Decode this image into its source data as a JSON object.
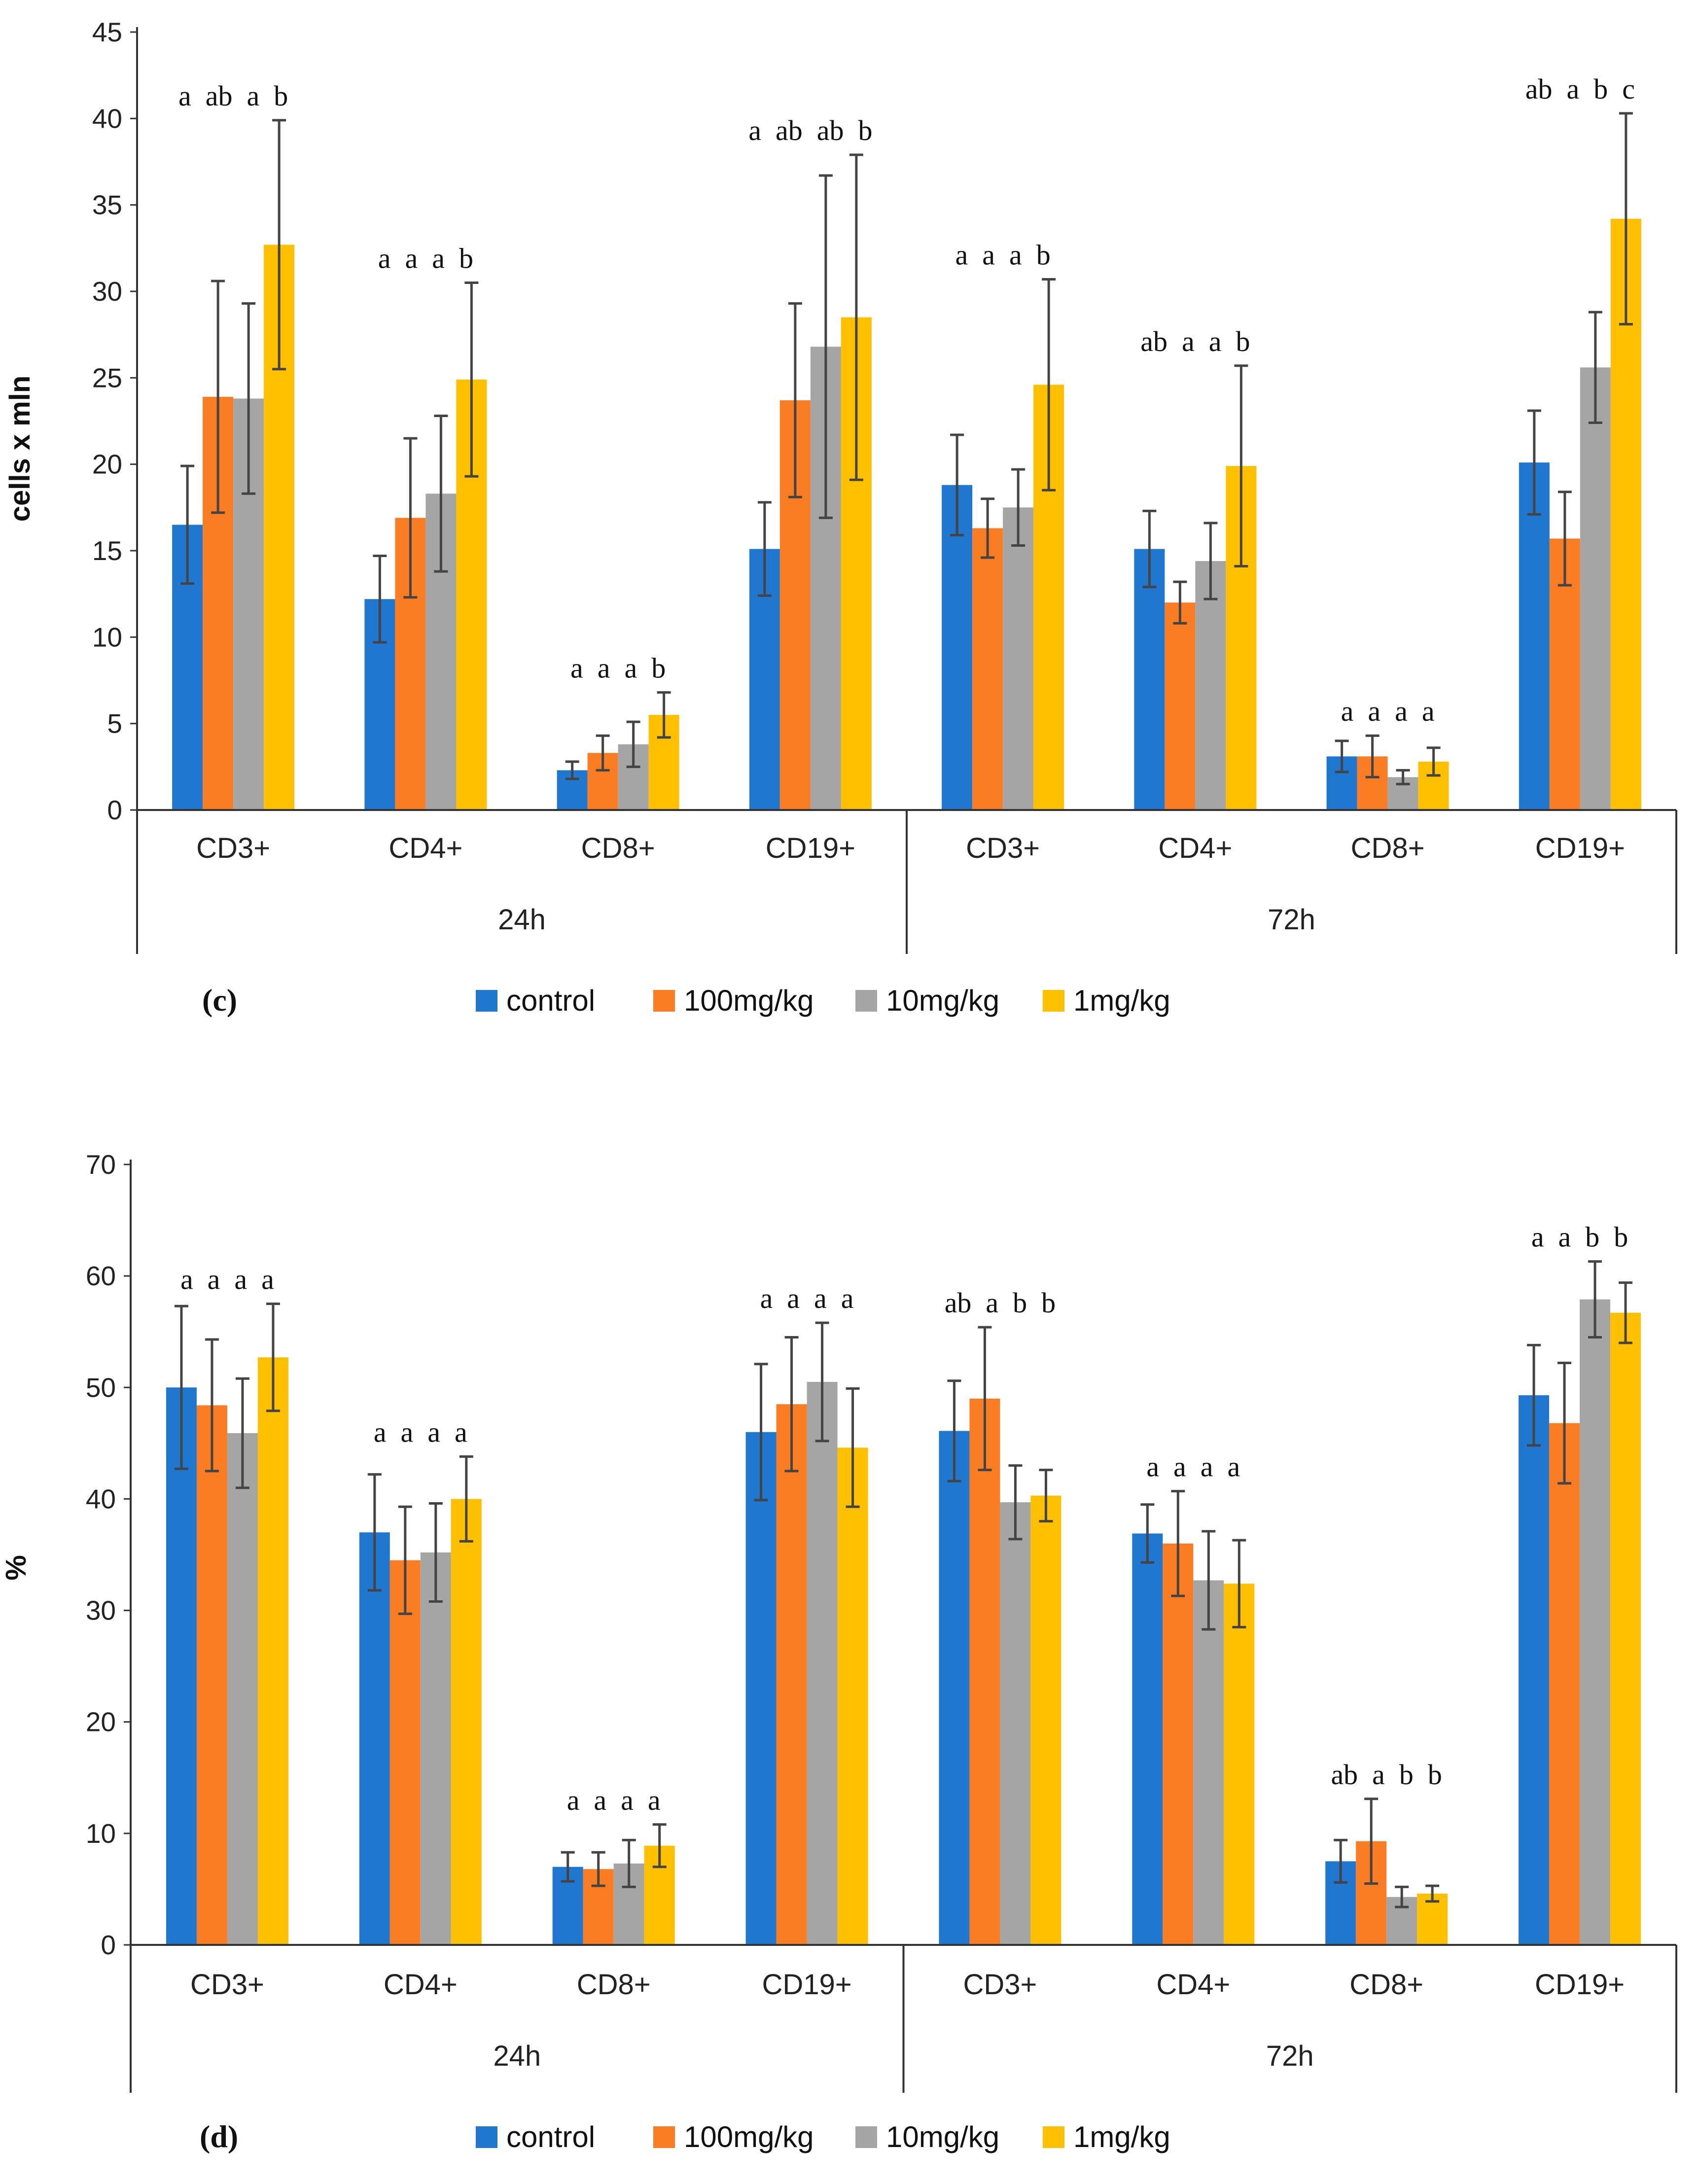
{
  "legend": [
    {
      "label": "control",
      "color": "#1F77CF"
    },
    {
      "label": "100mg/kg",
      "color": "#FA7D24"
    },
    {
      "label": "10mg/kg",
      "color": "#A5A5A5"
    },
    {
      "label": "1mg/kg",
      "color": "#FFC000"
    }
  ],
  "chart_data": [
    {
      "panel_label": "(c)",
      "type": "bar",
      "ylabel": "cells x mln",
      "ylim": [
        0,
        45
      ],
      "yticks": [
        0,
        5,
        10,
        15,
        20,
        25,
        30,
        35,
        40,
        45
      ],
      "groups": [
        "24h",
        "72h"
      ],
      "categories": [
        "CD3+",
        "CD4+",
        "CD8+",
        "CD19+",
        "CD3+",
        "CD4+",
        "CD8+",
        "CD19+"
      ],
      "series": [
        {
          "name": "control",
          "values": [
            16.5,
            12.2,
            2.3,
            15.1,
            18.8,
            15.1,
            3.1,
            20.1
          ],
          "errors": [
            3.4,
            2.5,
            0.5,
            2.7,
            2.9,
            2.2,
            0.9,
            3.0
          ]
        },
        {
          "name": "100mg/kg",
          "values": [
            23.9,
            16.9,
            3.3,
            23.7,
            16.3,
            12.0,
            3.1,
            15.7
          ],
          "errors": [
            6.7,
            4.6,
            1.0,
            5.6,
            1.7,
            1.2,
            1.2,
            2.7
          ]
        },
        {
          "name": "10mg/kg",
          "values": [
            23.8,
            18.3,
            3.8,
            26.8,
            17.5,
            14.4,
            1.9,
            25.6
          ],
          "errors": [
            5.5,
            4.5,
            1.3,
            9.9,
            2.2,
            2.2,
            0.4,
            3.2
          ]
        },
        {
          "name": "1mg/kg",
          "values": [
            32.7,
            24.9,
            5.5,
            28.5,
            24.6,
            19.9,
            2.8,
            34.2
          ],
          "errors": [
            7.2,
            5.6,
            1.3,
            9.4,
            6.1,
            5.8,
            0.8,
            6.1
          ]
        }
      ],
      "significance": [
        "a ab a  b",
        "a  a  a  b",
        "a  a  a  b",
        "a ab ab b",
        "a  a  a  b",
        "ab a  a  b",
        "a  a  a  a",
        "ab a  b  c"
      ]
    },
    {
      "panel_label": "(d)",
      "type": "bar",
      "ylabel": "%",
      "ylim": [
        0,
        70
      ],
      "yticks": [
        0,
        10,
        20,
        30,
        40,
        50,
        60,
        70
      ],
      "groups": [
        "24h",
        "72h"
      ],
      "categories": [
        "CD3+",
        "CD4+",
        "CD8+",
        "CD19+",
        "CD3+",
        "CD4+",
        "CD8+",
        "CD19+"
      ],
      "series": [
        {
          "name": "control",
          "values": [
            50.0,
            37.0,
            7.0,
            46.0,
            46.1,
            36.9,
            7.5,
            49.3
          ],
          "errors": [
            7.3,
            5.2,
            1.3,
            6.1,
            4.5,
            2.6,
            1.9,
            4.5
          ]
        },
        {
          "name": "100mg/kg",
          "values": [
            48.4,
            34.5,
            6.8,
            48.5,
            49.0,
            36.0,
            9.3,
            46.8
          ],
          "errors": [
            5.9,
            4.8,
            1.5,
            6.0,
            6.4,
            4.7,
            3.8,
            5.4
          ]
        },
        {
          "name": "10mg/kg",
          "values": [
            45.9,
            35.2,
            7.3,
            50.5,
            39.7,
            32.7,
            4.3,
            57.9
          ],
          "errors": [
            4.9,
            4.4,
            2.1,
            5.3,
            3.3,
            4.4,
            0.9,
            3.4
          ]
        },
        {
          "name": "1mg/kg",
          "values": [
            52.7,
            40.0,
            8.9,
            44.6,
            40.3,
            32.4,
            4.6,
            56.7
          ],
          "errors": [
            4.8,
            3.8,
            1.9,
            5.3,
            2.3,
            3.9,
            0.7,
            2.7
          ]
        }
      ],
      "significance": [
        "a  a  a  a",
        "a  a  a  a",
        "a  a  a  a",
        "a  a  a  a",
        "ab a  b  b",
        "a  a  a  a",
        "ab a  b  b",
        "a  a  b  b"
      ]
    }
  ]
}
